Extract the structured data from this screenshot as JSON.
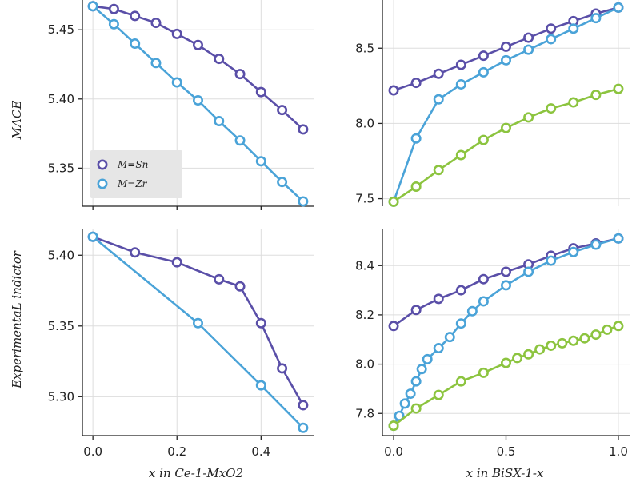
{
  "colors": {
    "Sn": "#5a4fa8",
    "Zr": "#4aa3d8",
    "Bi": "#8cc43f",
    "grid": "#dddddd",
    "axis": "#222222",
    "legend_bg": "#e6e6e6"
  },
  "labels": {
    "row_top": "MACE",
    "row_bottom": "ExperimentaL indictor",
    "x_left": "x  in Ce-1-MxO2",
    "x_right": "x in BiSX-1-x"
  },
  "chart_data": [
    {
      "id": "tl",
      "type": "line",
      "xlim": [
        -0.025,
        0.525
      ],
      "ylim": [
        5.3225,
        5.4715
      ],
      "grid": true,
      "legend_position": "lower-left",
      "xticks": [],
      "yticks": [
        5.35,
        5.4,
        5.45
      ],
      "ytick_labels": [
        "5.35",
        "5.40",
        "5.45"
      ],
      "legend": [
        {
          "color_key": "Sn",
          "label": "M=Sn"
        },
        {
          "color_key": "Zr",
          "label": "M=Zr"
        }
      ],
      "series": [
        {
          "color_key": "Sn",
          "x": [
            0,
            0.05,
            0.1,
            0.15,
            0.2,
            0.25,
            0.3,
            0.35,
            0.4,
            0.45,
            0.5
          ],
          "y": [
            5.467,
            5.465,
            5.46,
            5.455,
            5.447,
            5.439,
            5.429,
            5.418,
            5.405,
            5.392,
            5.378
          ],
          "marker_idx": "all"
        },
        {
          "color_key": "Zr",
          "x": [
            0,
            0.05,
            0.1,
            0.15,
            0.2,
            0.25,
            0.3,
            0.35,
            0.4,
            0.45,
            0.5
          ],
          "y": [
            5.467,
            5.454,
            5.44,
            5.426,
            5.412,
            5.399,
            5.384,
            5.37,
            5.355,
            5.34,
            5.326
          ],
          "marker_idx": "all"
        }
      ]
    },
    {
      "id": "tr",
      "type": "line",
      "xlim": [
        -0.05,
        1.05
      ],
      "ylim": [
        7.45,
        8.82
      ],
      "grid": true,
      "xticks": [],
      "yticks": [
        7.5,
        8.0,
        8.5
      ],
      "ytick_labels": [
        "7.5",
        "8.0",
        "8.5"
      ],
      "series": [
        {
          "color_key": "Sn",
          "x": [
            0,
            0.1,
            0.2,
            0.3,
            0.4,
            0.5,
            0.6,
            0.7,
            0.8,
            0.9,
            1.0
          ],
          "y": [
            8.22,
            8.27,
            8.33,
            8.39,
            8.45,
            8.51,
            8.57,
            8.63,
            8.68,
            8.73,
            8.77
          ],
          "marker_idx": "all"
        },
        {
          "color_key": "Zr",
          "x": [
            0,
            0.1,
            0.2,
            0.3,
            0.4,
            0.5,
            0.6,
            0.7,
            0.8,
            0.9,
            1.0
          ],
          "y": [
            7.48,
            7.9,
            8.16,
            8.26,
            8.34,
            8.42,
            8.49,
            8.56,
            8.63,
            8.7,
            8.77
          ],
          "marker_idx": "all"
        },
        {
          "color_key": "Bi",
          "x": [
            0,
            0.1,
            0.2,
            0.3,
            0.4,
            0.5,
            0.6,
            0.7,
            0.8,
            0.9,
            1.0
          ],
          "y": [
            7.48,
            7.58,
            7.69,
            7.79,
            7.89,
            7.97,
            8.04,
            8.1,
            8.14,
            8.19,
            8.23
          ],
          "marker_idx": "all"
        }
      ]
    },
    {
      "id": "bl",
      "type": "line",
      "xlim": [
        -0.025,
        0.525
      ],
      "ylim": [
        5.2725,
        5.4188
      ],
      "grid": true,
      "xticks": [
        0.0,
        0.2,
        0.4
      ],
      "xtick_labels": [
        "0.0",
        "0.2",
        "0.4"
      ],
      "yticks": [
        5.3,
        5.35,
        5.4
      ],
      "ytick_labels": [
        "5.30",
        "5.35",
        "5.40"
      ],
      "series": [
        {
          "color_key": "Sn",
          "x": [
            0,
            0.1,
            0.2,
            0.3,
            0.35,
            0.4,
            0.45,
            0.5
          ],
          "y": [
            5.413,
            5.402,
            5.395,
            5.383,
            5.378,
            5.352,
            5.32,
            5.294
          ],
          "marker_idx": "all"
        },
        {
          "color_key": "Zr",
          "x": [
            0,
            0.25,
            0.4,
            0.5
          ],
          "y": [
            5.413,
            5.352,
            5.308,
            5.278
          ],
          "marker_idx": "all"
        }
      ]
    },
    {
      "id": "br",
      "type": "line",
      "xlim": [
        -0.05,
        1.05
      ],
      "ylim": [
        7.71,
        8.55
      ],
      "grid": true,
      "xticks": [
        0.0,
        0.5,
        1.0
      ],
      "xtick_labels": [
        "0.0",
        "0.5",
        "1.0"
      ],
      "yticks": [
        7.8,
        8.0,
        8.2,
        8.4
      ],
      "ytick_labels": [
        "7.8",
        "8.0",
        "8.2",
        "8.4"
      ],
      "series": [
        {
          "color_key": "Sn",
          "x": [
            0,
            0.1,
            0.2,
            0.3,
            0.4,
            0.5,
            0.6,
            0.7,
            0.8,
            0.9,
            1.0
          ],
          "y": [
            8.155,
            8.22,
            8.265,
            8.3,
            8.345,
            8.375,
            8.405,
            8.44,
            8.47,
            8.49,
            8.51
          ],
          "marker_idx": "all"
        },
        {
          "color_key": "Zr",
          "x": [
            0,
            0.025,
            0.05,
            0.075,
            0.1,
            0.125,
            0.15,
            0.2,
            0.25,
            0.3,
            0.35,
            0.4,
            0.5,
            0.6,
            0.7,
            0.8,
            0.9,
            1.0
          ],
          "y": [
            7.75,
            7.79,
            7.84,
            7.88,
            7.93,
            7.98,
            8.02,
            8.065,
            8.11,
            8.165,
            8.215,
            8.255,
            8.32,
            8.375,
            8.42,
            8.455,
            8.485,
            8.51
          ],
          "marker_idx": [
            0,
            2,
            4,
            6,
            8,
            10,
            12,
            14,
            16,
            17,
            18,
            20,
            22,
            23,
            24,
            25,
            26,
            27
          ]
        },
        {
          "color_key": "Bi",
          "x": [
            0,
            0.1,
            0.2,
            0.3,
            0.4,
            0.5,
            0.55,
            0.6,
            0.65,
            0.7,
            0.75,
            0.8,
            0.85,
            0.9,
            0.95,
            1.0
          ],
          "y": [
            7.75,
            7.82,
            7.875,
            7.93,
            7.965,
            8.005,
            8.025,
            8.04,
            8.06,
            8.075,
            8.085,
            8.095,
            8.105,
            8.12,
            8.14,
            8.155
          ],
          "marker_idx": "all"
        }
      ]
    }
  ]
}
